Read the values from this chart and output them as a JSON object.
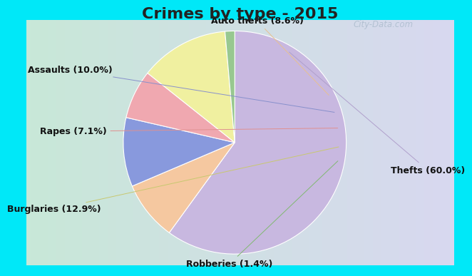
{
  "title": "Crimes by type - 2015",
  "slices": [
    {
      "label": "Thefts (60.0%)",
      "value": 60.0,
      "color": "#c8b8e0"
    },
    {
      "label": "Auto thefts (8.6%)",
      "value": 8.6,
      "color": "#f5c8a0"
    },
    {
      "label": "Assaults (10.0%)",
      "value": 10.0,
      "color": "#8899dd"
    },
    {
      "label": "Rapes (7.1%)",
      "value": 7.1,
      "color": "#f0a8b0"
    },
    {
      "label": "Burglaries (12.9%)",
      "value": 12.9,
      "color": "#f0f0a0"
    },
    {
      "label": "Robberies (1.4%)",
      "value": 1.4,
      "color": "#98c890"
    }
  ],
  "outer_background": "#00e8f8",
  "title_fontsize": 16,
  "title_fontweight": "bold",
  "title_color": "#222222",
  "label_fontsize": 9,
  "label_fontweight": "bold",
  "label_color": "#111111",
  "watermark": "City-Data.com",
  "watermark_color": "#aabbcc",
  "inner_bg_left": "#c8e8d8",
  "inner_bg_right": "#d8d8f0",
  "line_colors": [
    "#b0a0cc",
    "#e8c090",
    "#8890cc",
    "#e09090",
    "#c8c870",
    "#80b870"
  ]
}
